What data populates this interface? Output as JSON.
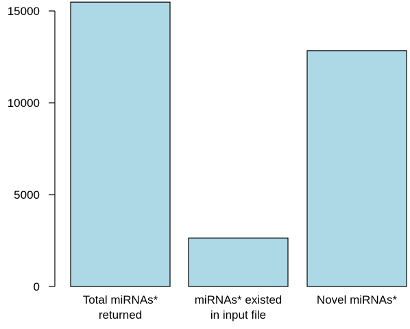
{
  "chart_data": {
    "type": "bar",
    "categories": [
      "Total miRNAs*\nreturned",
      "miRNAs* existed\nin input file",
      "Novel miRNAs*"
    ],
    "values": [
      15480,
      2640,
      12840
    ],
    "title": "",
    "xlabel": "",
    "ylabel": "",
    "ylim": [
      0,
      15000
    ],
    "yticks": [
      0,
      5000,
      10000,
      15000
    ],
    "bar_color": "#add8e6",
    "bar_edge_color": "#000000",
    "grid": false,
    "legend": "none"
  }
}
